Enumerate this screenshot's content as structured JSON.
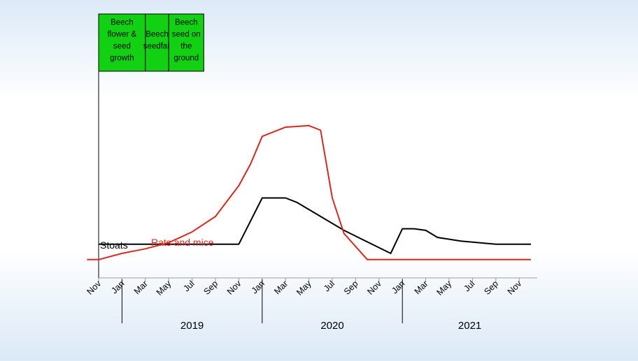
{
  "chart_data": {
    "type": "line",
    "title": "",
    "xlabel": "",
    "ylabel": "",
    "x_start": "2018-11",
    "month_tick_labels": [
      "Nov",
      "Jan",
      "Mar",
      "May",
      "Jul",
      "Sep",
      "Nov",
      "Jan",
      "Mar",
      "May",
      "Jul",
      "Sep",
      "Nov",
      "Jan",
      "Mar",
      "May",
      "Jul",
      "Sep",
      "Nov"
    ],
    "year_labels": [
      "2019",
      "2020",
      "2021"
    ],
    "phases": [
      {
        "label": "Beech flower & seed growth",
        "start": "2018-11",
        "end": "2019-03",
        "color": "#12d112"
      },
      {
        "label": "Beech seedfall",
        "start": "2019-03",
        "end": "2019-05",
        "color": "#12d112"
      },
      {
        "label": "Beech seed on the ground",
        "start": "2019-05",
        "end": "2019-08",
        "color": "#12d112"
      }
    ],
    "series": [
      {
        "name": "Stoats",
        "color": "#000000",
        "points": [
          [
            "2018-11",
            0.5
          ],
          [
            "2019-11",
            0.5
          ],
          [
            "2020-01",
            2.0
          ],
          [
            "2020-03",
            2.0
          ],
          [
            "2020-04",
            1.85
          ],
          [
            "2020-06",
            1.4
          ],
          [
            "2020-08",
            0.95
          ],
          [
            "2020-12",
            0.2
          ],
          [
            "2021-01",
            1.0
          ],
          [
            "2021-02",
            1.0
          ],
          [
            "2021-03",
            0.95
          ],
          [
            "2021-04",
            0.72
          ],
          [
            "2021-06",
            0.6
          ],
          [
            "2021-09",
            0.5
          ],
          [
            "2021-12",
            0.5
          ]
        ]
      },
      {
        "name": "Rats and mice",
        "color": "#d42a1e",
        "points": [
          [
            "2018-10",
            0.0
          ],
          [
            "2018-11",
            0.0
          ],
          [
            "2019-01",
            0.2
          ],
          [
            "2019-03",
            0.35
          ],
          [
            "2019-05",
            0.55
          ],
          [
            "2019-07",
            0.9
          ],
          [
            "2019-09",
            1.4
          ],
          [
            "2019-10",
            1.9
          ],
          [
            "2019-11",
            2.4
          ],
          [
            "2019-12",
            3.1
          ],
          [
            "2020-01",
            4.0
          ],
          [
            "2020-03",
            4.3
          ],
          [
            "2020-05",
            4.35
          ],
          [
            "2020-06",
            4.2
          ],
          [
            "2020-07",
            2.0
          ],
          [
            "2020-08",
            0.85
          ],
          [
            "2020-10",
            0.0
          ],
          [
            "2021-12",
            0.0
          ]
        ]
      }
    ],
    "ylim": [
      -0.3,
      4.8
    ],
    "grid": false,
    "legend": "inline labels"
  }
}
